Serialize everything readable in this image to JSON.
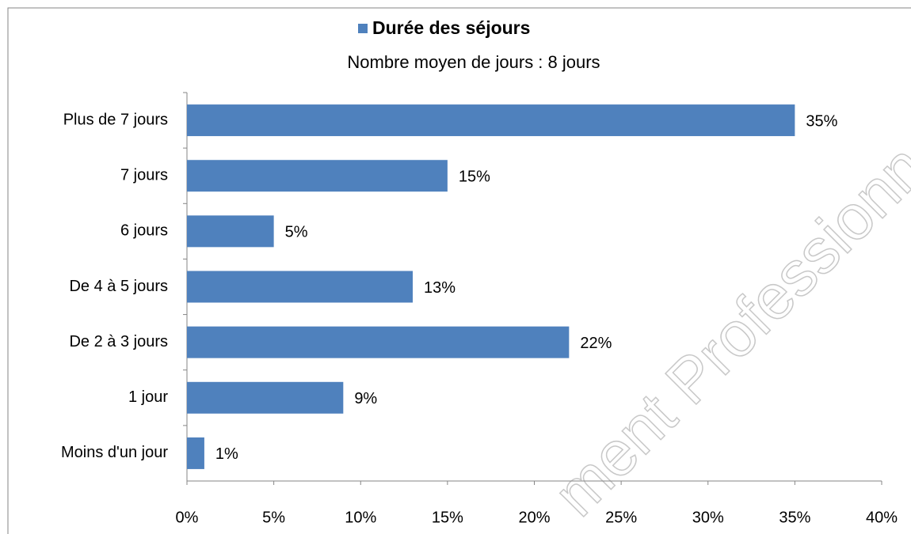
{
  "chart_data": {
    "type": "bar",
    "orientation": "horizontal",
    "subtitle": "Nombre moyen de jours : 8 jours",
    "categories": [
      "Plus de 7 jours",
      "7 jours",
      "6 jours",
      "De 4 à 5 jours",
      "De 2 à 3 jours",
      "1 jour",
      "Moins d'un jour"
    ],
    "series": [
      {
        "name": "Durée des séjours",
        "color": "#4f81bd",
        "values": [
          35,
          15,
          5,
          13,
          22,
          9,
          1
        ],
        "value_labels": [
          "35%",
          "15%",
          "5%",
          "13%",
          "22%",
          "9%",
          "1%"
        ]
      }
    ],
    "xlim": [
      0,
      40
    ],
    "xticks": [
      {
        "value": 0,
        "label": "0%"
      },
      {
        "value": 5,
        "label": "5%"
      },
      {
        "value": 10,
        "label": "10%"
      },
      {
        "value": 15,
        "label": "15%"
      },
      {
        "value": 20,
        "label": "20%"
      },
      {
        "value": 25,
        "label": "25%"
      },
      {
        "value": 30,
        "label": "30%"
      },
      {
        "value": 35,
        "label": "35%"
      },
      {
        "value": 40,
        "label": "40%"
      }
    ],
    "grid": false,
    "legend": "top",
    "watermark": "ment Professionnel"
  }
}
